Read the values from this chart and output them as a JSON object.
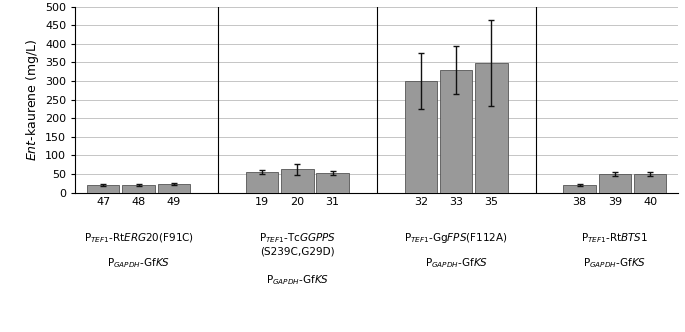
{
  "bar_values": [
    20,
    20,
    22,
    55,
    63,
    53,
    300,
    330,
    348,
    20,
    50,
    50
  ],
  "bar_errors": [
    3,
    3,
    3,
    5,
    15,
    5,
    75,
    65,
    115,
    3,
    5,
    5
  ],
  "bar_labels": [
    "47",
    "48",
    "49",
    "19",
    "20",
    "31",
    "32",
    "33",
    "35",
    "38",
    "39",
    "40"
  ],
  "bar_color": "#999999",
  "bar_edgecolor": "#555555",
  "error_color": "#111111",
  "group_centers": [
    1,
    4,
    7,
    10
  ],
  "ylabel": "Ent-kaurene (mg/L)",
  "ylim": [
    0,
    500
  ],
  "yticks": [
    0,
    50,
    100,
    150,
    200,
    250,
    300,
    350,
    400,
    450,
    500
  ],
  "background_color": "#ffffff",
  "grid_color": "#bbbbbb",
  "figsize": [
    6.85,
    3.32
  ],
  "dpi": 100
}
